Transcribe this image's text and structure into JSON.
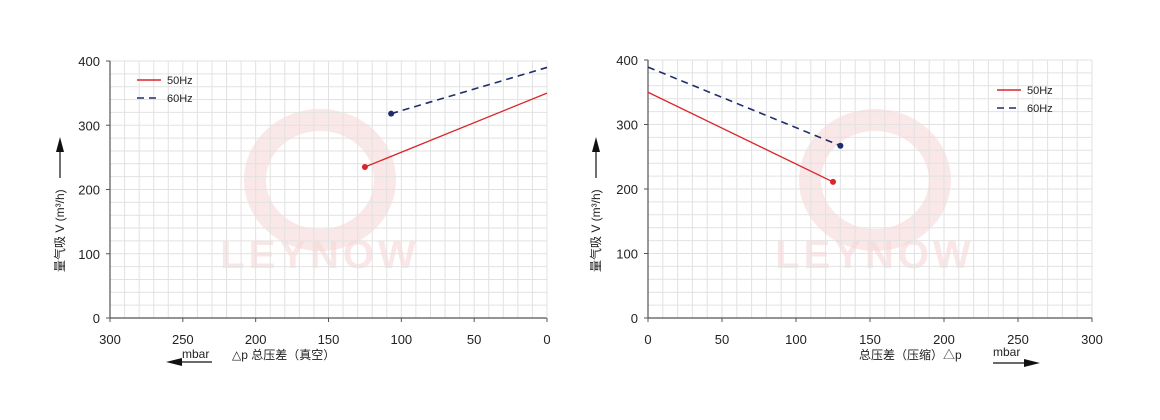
{
  "colors": {
    "s50": "#d9262b",
    "s60": "#1f2d6b",
    "grid": "#e2e2e2",
    "axis": "#555555",
    "watermark": "#f7d7d7"
  },
  "watermark": "LEYNOW",
  "chart_data": [
    {
      "type": "line",
      "title": "",
      "xlabel": "△p 总压差（真空）",
      "xunit": "mbar",
      "ylabel": "量气吸 V (m³/h)",
      "xlim": [
        300,
        0
      ],
      "ylim": [
        0,
        400
      ],
      "x_reversed": true,
      "xticks": [
        300,
        250,
        200,
        150,
        100,
        50,
        0
      ],
      "yticks": [
        0,
        100,
        200,
        300,
        400
      ],
      "grid": true,
      "legend_position": "top-left",
      "series": [
        {
          "name": "50Hz",
          "style": "solid",
          "x": [
            125,
            0
          ],
          "y": [
            235,
            350
          ]
        },
        {
          "name": "60Hz",
          "style": "dashed",
          "x": [
            107,
            0
          ],
          "y": [
            318,
            390
          ]
        }
      ]
    },
    {
      "type": "line",
      "title": "",
      "xlabel": "总压差（压缩）△p",
      "xunit": "mbar",
      "ylabel": "量气吸 V (m³/h)",
      "xlim": [
        0,
        300
      ],
      "ylim": [
        0,
        400
      ],
      "x_reversed": false,
      "xticks": [
        0,
        50,
        100,
        150,
        200,
        250,
        300
      ],
      "yticks": [
        0,
        100,
        200,
        300,
        400
      ],
      "grid": true,
      "legend_position": "top-right",
      "series": [
        {
          "name": "50Hz",
          "style": "solid",
          "x": [
            0,
            125
          ],
          "y": [
            350,
            211
          ]
        },
        {
          "name": "60Hz",
          "style": "dashed",
          "x": [
            0,
            130
          ],
          "y": [
            389,
            267
          ]
        }
      ]
    }
  ]
}
